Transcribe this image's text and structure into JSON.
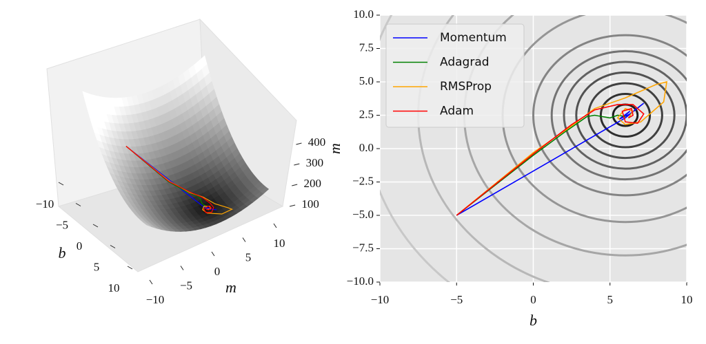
{
  "chart_data": [
    {
      "type": "surface3d",
      "xlabel": "b",
      "ylabel": "m",
      "xlim": [
        -10,
        10
      ],
      "ylim": [
        -10,
        10
      ],
      "zlim": [
        0,
        450
      ],
      "xticks": [
        {
          "value": -10,
          "label": "−10"
        },
        {
          "value": -5,
          "label": "−5"
        },
        0,
        5,
        10
      ],
      "yticks": [
        {
          "value": -10,
          "label": "−10"
        },
        {
          "value": -5,
          "label": "−5"
        },
        0,
        5,
        10
      ],
      "zticks": [
        100,
        200,
        300,
        400
      ]
    },
    {
      "type": "line",
      "xlabel": "b",
      "ylabel": "m",
      "xlim": [
        -10,
        10
      ],
      "ylim": [
        -10,
        10
      ],
      "xticks": [
        {
          "value": -10,
          "label": "−10"
        },
        {
          "value": -5,
          "label": "−5"
        },
        0,
        5,
        10
      ],
      "yticks": [
        {
          "value": -10,
          "label": "−10.0"
        },
        {
          "value": -7.5,
          "label": "−7.5"
        },
        {
          "value": -5,
          "label": "−5.0"
        },
        {
          "value": -2.5,
          "label": "−2.5"
        },
        {
          "value": 0,
          "label": "0.0"
        },
        2.5,
        {
          "value": 5,
          "label": "5.0"
        },
        7.5,
        {
          "value": 10,
          "label": "10.0"
        }
      ],
      "grid": true,
      "legend": "upper left",
      "contours": {
        "center": [
          6,
          2.5
        ],
        "levels": [
          0.8,
          1.6,
          2.4,
          3.2,
          4.0,
          4.8,
          6.0,
          8.0,
          10.5,
          13.5,
          17
        ]
      },
      "series": [
        {
          "name": "Momentum",
          "color": "#0000ff",
          "x": [
            -5,
            6,
            7.2,
            6.3,
            5.6,
            6.3,
            6
          ],
          "values": [
            -5,
            2.3,
            3.4,
            2.6,
            2.2,
            2.8,
            2.5
          ]
        },
        {
          "name": "Adagrad",
          "color": "#008000",
          "x": [
            -5,
            0,
            2,
            3.5,
            4,
            5,
            5.5,
            6
          ],
          "values": [
            -5,
            -0.5,
            1.2,
            2.4,
            2.5,
            2.3,
            2.5,
            2.4
          ]
        },
        {
          "name": "RMSProp",
          "color": "#ffa500",
          "x": [
            -5,
            0,
            2.5,
            4,
            6,
            8,
            8.7,
            8.5,
            7,
            6,
            5.5,
            6,
            6.5,
            6.2
          ],
          "values": [
            -5,
            -0.3,
            1.7,
            3,
            3.8,
            4.8,
            5,
            3.5,
            2,
            1.8,
            2.3,
            3,
            2.8,
            2.3
          ]
        },
        {
          "name": "Adam",
          "color": "#ff0000",
          "x": [
            -5,
            0,
            2.5,
            4,
            5.5,
            6.5,
            7.2,
            6.8,
            6,
            5.8,
            6.4,
            6.5,
            6.2
          ],
          "values": [
            -5,
            -0.4,
            1.8,
            2.9,
            3.3,
            3.3,
            2.6,
            1.9,
            2,
            2.8,
            3,
            2.5,
            2.3
          ]
        }
      ]
    }
  ]
}
